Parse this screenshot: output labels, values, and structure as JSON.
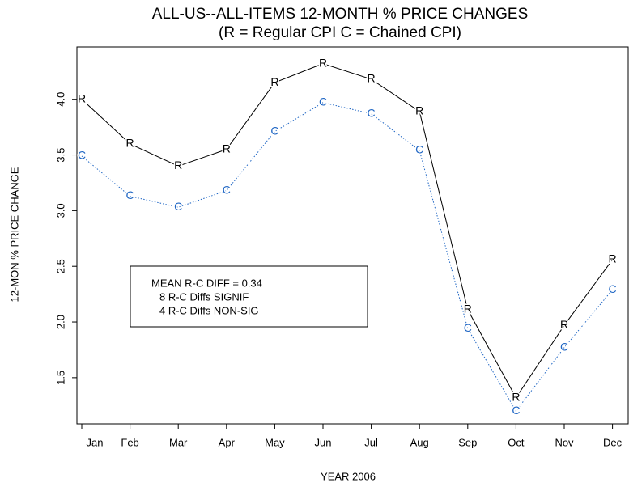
{
  "chart_data": {
    "type": "line",
    "title": "ALL-US--ALL-ITEMS     12-MONTH % PRICE CHANGES",
    "subtitle": "(R = Regular CPI      C = Chained CPI)",
    "ylabel": "12-MON % PRICE CHANGE",
    "xlabel": "YEAR 2006",
    "annotations": [
      "MEAN R-C DIFF = 0.34",
      "8 R-C Diffs SIGNIF",
      "4 R-C Diffs NON-SIG"
    ],
    "categories": [
      "Jan",
      "Feb",
      "Mar",
      "Apr",
      "May",
      "Jun",
      "Jul",
      "Aug",
      "Sep",
      "Oct",
      "Nov",
      "Dec"
    ],
    "series": [
      {
        "name": "Regular CPI",
        "marker": "R",
        "color": "#000000",
        "line_style": "solid",
        "values": [
          4.0,
          3.6,
          3.4,
          3.55,
          4.15,
          4.32,
          4.18,
          3.89,
          2.11,
          1.32,
          1.97,
          2.56
        ]
      },
      {
        "name": "Chained CPI",
        "marker": "C",
        "color": "#1f66c4",
        "line_style": "dotted",
        "values": [
          3.49,
          3.13,
          3.03,
          3.18,
          3.71,
          3.97,
          3.87,
          3.54,
          1.94,
          1.2,
          1.77,
          2.29
        ]
      }
    ],
    "ylim": [
      1.085,
      4.47
    ],
    "yticks": [
      1.5,
      {
        "value": 2,
        "label": "2.0"
      },
      2.5,
      {
        "value": 3,
        "label": "3.0"
      },
      3.5,
      {
        "value": 4,
        "label": "4.0"
      }
    ]
  }
}
